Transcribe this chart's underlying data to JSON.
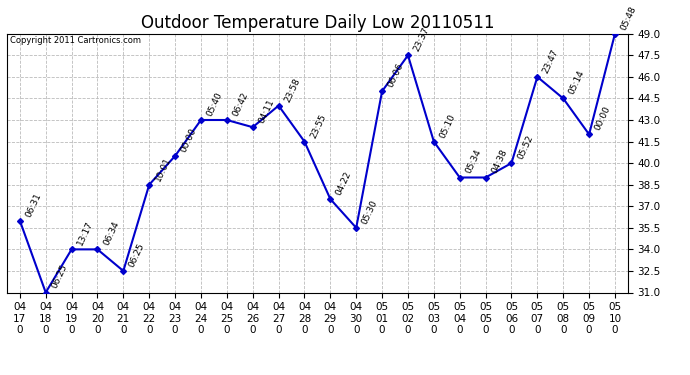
{
  "title": "Outdoor Temperature Daily Low 20110511",
  "copyright": "Copyright 2011 Cartronics.com",
  "x_labels": [
    "04/17",
    "04/18",
    "04/19",
    "04/20",
    "04/21",
    "04/22",
    "04/23",
    "04/24",
    "04/25",
    "04/26",
    "04/27",
    "04/28",
    "04/29",
    "04/30",
    "05/01",
    "05/02",
    "05/03",
    "05/04",
    "05/05",
    "05/06",
    "05/07",
    "05/08",
    "05/09",
    "05/10"
  ],
  "y_values": [
    36.0,
    31.0,
    34.0,
    34.0,
    32.5,
    38.5,
    40.5,
    43.0,
    43.0,
    42.5,
    44.0,
    41.5,
    37.5,
    35.5,
    45.0,
    47.5,
    41.5,
    39.0,
    39.0,
    40.0,
    46.0,
    44.5,
    42.0,
    49.0
  ],
  "point_labels": [
    "06:31",
    "06:25",
    "13:17",
    "06:34",
    "06:25",
    "10:01",
    "00:00",
    "05:40",
    "06:42",
    "04:11",
    "23:58",
    "23:55",
    "04:22",
    "05:30",
    "06:06",
    "23:37",
    "05:10",
    "05:34",
    "04:38",
    "05:52",
    "23:47",
    "05:14",
    "00:00",
    "05:48"
  ],
  "ylim": [
    31.0,
    49.0
  ],
  "yticks": [
    31.0,
    32.5,
    34.0,
    35.5,
    37.0,
    38.5,
    40.0,
    41.5,
    43.0,
    44.5,
    46.0,
    47.5,
    49.0
  ],
  "line_color": "#0000cc",
  "marker_color": "#0000cc",
  "bg_color": "#ffffff",
  "plot_bg_color": "#ffffff",
  "grid_color": "#bbbbbb",
  "title_fontsize": 12,
  "tick_fontsize": 7.5,
  "label_fontsize": 6.5
}
